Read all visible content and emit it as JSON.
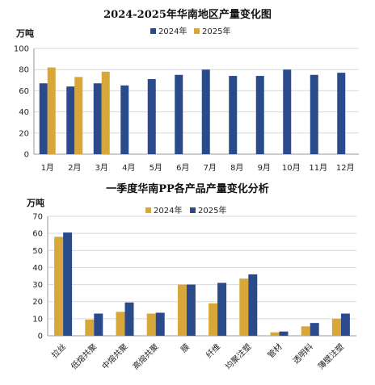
{
  "chart_data": [
    {
      "type": "bar",
      "title": "2024-2025年华南地区产量变化图",
      "unit": "万吨",
      "categories": [
        "1月",
        "2月",
        "3月",
        "4月",
        "5月",
        "6月",
        "7月",
        "8月",
        "9月",
        "10月",
        "11月",
        "12月"
      ],
      "series": [
        {
          "name": "2024年",
          "color": "#2b4a8b",
          "values": [
            67,
            64,
            67,
            65,
            71,
            75,
            80,
            74,
            74,
            80,
            75,
            77
          ]
        },
        {
          "name": "2025年",
          "color": "#d8a73a",
          "values": [
            82,
            73,
            78,
            null,
            null,
            null,
            null,
            null,
            null,
            null,
            null,
            null
          ]
        }
      ],
      "ylim": [
        0,
        100
      ],
      "yticks": [
        "0",
        "20",
        "40",
        "60",
        "80",
        "100"
      ],
      "grid": true,
      "legend": "top-right"
    },
    {
      "type": "bar",
      "title": "一季度华南PP各产品产量变化分析",
      "unit": "万吨",
      "categories": [
        "拉丝",
        "低熔共聚",
        "中熔共聚",
        "高熔共聚",
        "膜",
        "纤维",
        "均聚注塑",
        "管材",
        "透明料",
        "薄壁注塑"
      ],
      "series": [
        {
          "name": "2024年",
          "color": "#d8a73a",
          "values": [
            58,
            9.5,
            14,
            13,
            30,
            19,
            33.5,
            2,
            5.5,
            10
          ]
        },
        {
          "name": "2025年",
          "color": "#2b4a8b",
          "values": [
            60.5,
            13,
            19.5,
            13.5,
            30,
            31,
            36,
            2.5,
            7.5,
            13
          ]
        }
      ],
      "ylim": [
        0,
        70
      ],
      "yticks": [
        "0",
        "10",
        "20",
        "30",
        "40",
        "50",
        "60",
        "70"
      ],
      "grid": true,
      "legend": "top-center"
    }
  ]
}
